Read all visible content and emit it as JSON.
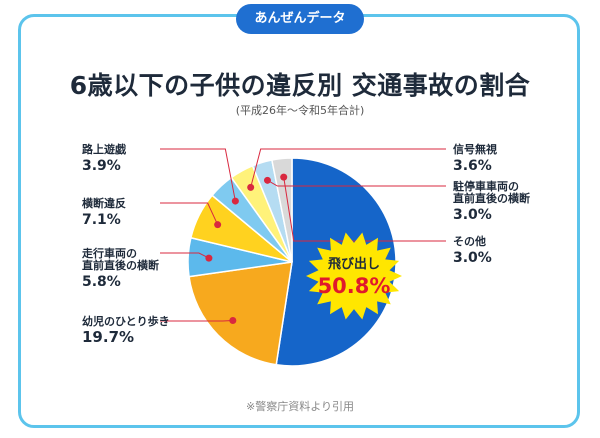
{
  "header": {
    "pill_label": "あんぜんデータ"
  },
  "title": "6歳以下の子供の違反別 交通事故の割合",
  "subtitle": "(平成26年〜令和5年合計)",
  "source": "※警察庁資料より引用",
  "colors": {
    "accent": "#1f6fd1",
    "frame": "#5cc4ec",
    "leader": "#d9283f",
    "starburst": "#ffe600"
  },
  "chart_data": {
    "type": "pie",
    "title": "6歳以下の子供の違反別 交通事故の割合",
    "unit": "%",
    "slices": [
      {
        "label": "飛び出し",
        "value": 50.8,
        "value_label": "50.8%",
        "color": "#1565c9"
      },
      {
        "label": "幼児のひとり歩き",
        "value": 19.7,
        "value_label": "19.7%",
        "color": "#f7a91e"
      },
      {
        "label": "走行車両の直前直後の横断",
        "value": 5.8,
        "value_label": "5.8%",
        "color": "#5cb9ec"
      },
      {
        "label": "横断違反",
        "value": 7.1,
        "value_label": "7.1%",
        "color": "#ffd21f"
      },
      {
        "label": "路上遊戯",
        "value": 3.9,
        "value_label": "3.9%",
        "color": "#7fcaf0"
      },
      {
        "label": "信号無視",
        "value": 3.6,
        "value_label": "3.6%",
        "color": "#fff27a"
      },
      {
        "label": "駐停車車両の直前直後の横断",
        "value": 3.0,
        "value_label": "3.0%",
        "color": "#b5dcf2"
      },
      {
        "label": "その他",
        "value": 3.0,
        "value_label": "3.0%",
        "color": "#d9d9d9"
      }
    ],
    "highlight": {
      "label": "飛び出し",
      "value_label": "50.8%"
    }
  },
  "labels": {
    "left": [
      {
        "name_lines": [
          "路上遊戯"
        ],
        "value": "3.9%"
      },
      {
        "name_lines": [
          "横断違反"
        ],
        "value": "7.1%"
      },
      {
        "name_lines": [
          "走行車両の",
          "直前直後の横断"
        ],
        "value": "5.8%"
      },
      {
        "name_lines": [
          "幼児のひとり歩き"
        ],
        "value": "19.7%"
      }
    ],
    "right": [
      {
        "name_lines": [
          "信号無視"
        ],
        "value": "3.6%"
      },
      {
        "name_lines": [
          "駐停車車両の",
          "直前直後の横断"
        ],
        "value": "3.0%"
      },
      {
        "name_lines": [
          "その他"
        ],
        "value": "3.0%"
      }
    ]
  }
}
